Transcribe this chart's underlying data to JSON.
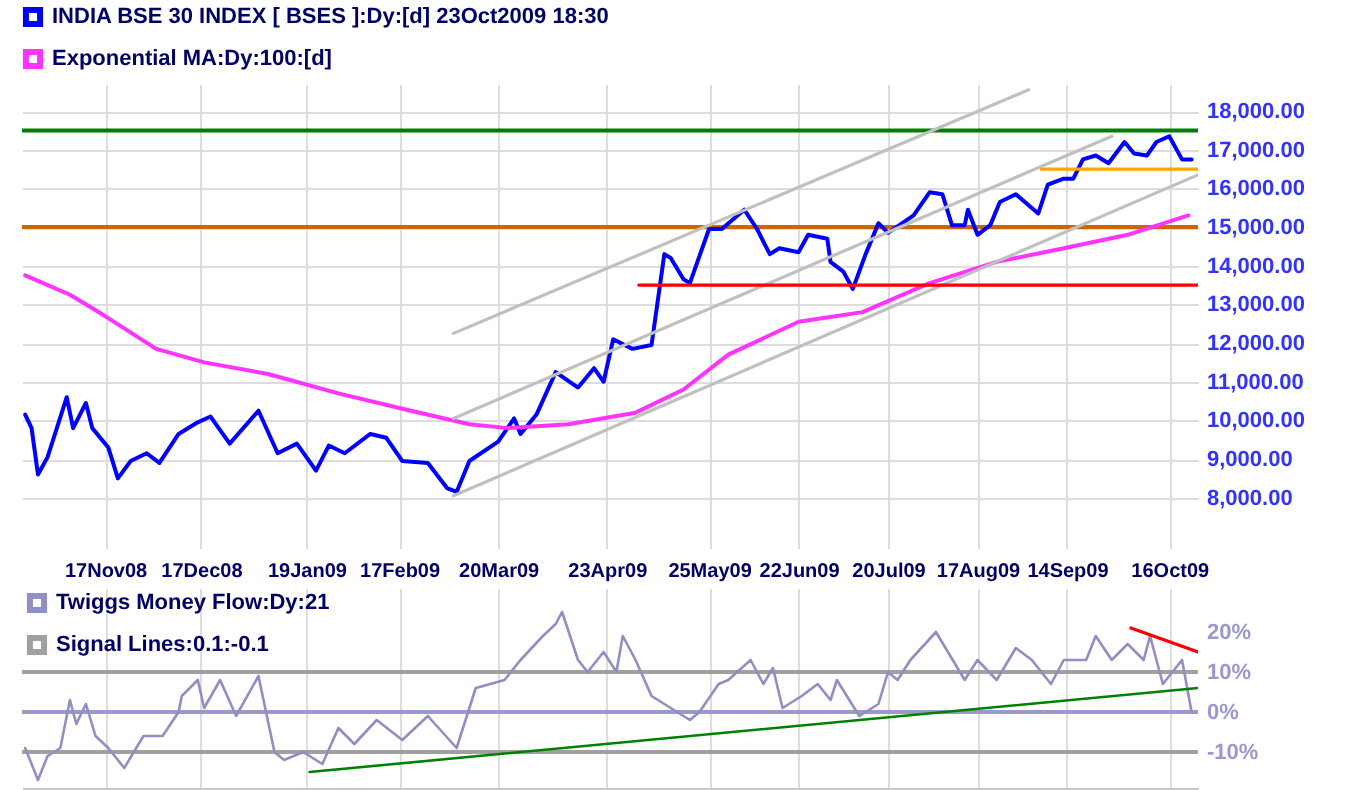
{
  "chart_data": [
    {
      "type": "line",
      "legend": "top left",
      "grid": true,
      "xlim": [
        "2008-10-22",
        "2009-10-25"
      ],
      "xticks": [
        {
          "value": "2008-11-17",
          "label": "17Nov08"
        },
        {
          "value": "2008-12-17",
          "label": "17Dec08"
        },
        {
          "value": "2009-01-19",
          "label": "19Jan09"
        },
        {
          "value": "2009-02-17",
          "label": "17Feb09"
        },
        {
          "value": "2009-03-20",
          "label": "20Mar09"
        },
        {
          "value": "2009-04-23",
          "label": "23Apr09"
        },
        {
          "value": "2009-05-25",
          "label": "25May09"
        },
        {
          "value": "2009-06-22",
          "label": "22Jun09"
        },
        {
          "value": "2009-07-20",
          "label": "20Jul09"
        },
        {
          "value": "2009-08-17",
          "label": "17Aug09"
        },
        {
          "value": "2009-09-14",
          "label": "14Sep09"
        },
        {
          "value": "2009-10-16",
          "label": "16Oct09"
        }
      ],
      "ylim": [
        6700,
        18700
      ],
      "yticks": [
        {
          "value": 8000,
          "label": "8,000.00"
        },
        {
          "value": 9000,
          "label": "9,000.00"
        },
        {
          "value": 10000,
          "label": "10,000.00"
        },
        {
          "value": 11000,
          "label": "11,000.00"
        },
        {
          "value": 12000,
          "label": "12,000.00"
        },
        {
          "value": 13000,
          "label": "13,000.00"
        },
        {
          "value": 14000,
          "label": "14,000.00"
        },
        {
          "value": 15000,
          "label": "15,000.00"
        },
        {
          "value": 16000,
          "label": "16,000.00"
        },
        {
          "value": 17000,
          "label": "17,000.00"
        },
        {
          "value": 18000,
          "label": "18,000.00"
        }
      ],
      "ref_lines": [
        {
          "axis": "y",
          "value": 17500,
          "label": null,
          "color": "#008000"
        },
        {
          "axis": "y",
          "value": 15000,
          "label": null,
          "color": "#cc6600"
        }
      ],
      "series": [
        {
          "name": "INDIA BSE 30 INDEX [ BSES ]:Dy:[d]  23Oct2009 18:30",
          "color": "#0000ff",
          "x": [
            "2008-10-23",
            "2008-10-25",
            "2008-10-27",
            "2008-10-30",
            "2008-11-05",
            "2008-11-07",
            "2008-11-11",
            "2008-11-13",
            "2008-11-18",
            "2008-11-21",
            "2008-11-25",
            "2008-11-30",
            "2008-12-04",
            "2008-12-10",
            "2008-12-16",
            "2008-12-20",
            "2008-12-26",
            "2009-01-04",
            "2009-01-10",
            "2009-01-16",
            "2009-01-22",
            "2009-01-26",
            "2009-01-31",
            "2009-02-08",
            "2009-02-13",
            "2009-02-18",
            "2009-02-26",
            "2009-03-04",
            "2009-03-07",
            "2009-03-11",
            "2009-03-20",
            "2009-03-25",
            "2009-03-27",
            "2009-04-01",
            "2009-04-07",
            "2009-04-14",
            "2009-04-19",
            "2009-04-22",
            "2009-04-25",
            "2009-05-01",
            "2009-05-07",
            "2009-05-11",
            "2009-05-13",
            "2009-05-17",
            "2009-05-19",
            "2009-05-25",
            "2009-05-29",
            "2009-06-05",
            "2009-06-09",
            "2009-06-13",
            "2009-06-16",
            "2009-06-22",
            "2009-06-25",
            "2009-07-01",
            "2009-07-02",
            "2009-07-06",
            "2009-07-09",
            "2009-07-13",
            "2009-07-17",
            "2009-07-20",
            "2009-07-28",
            "2009-08-02",
            "2009-08-06",
            "2009-08-09",
            "2009-08-13",
            "2009-08-14",
            "2009-08-17",
            "2009-08-21",
            "2009-08-24",
            "2009-08-29",
            "2009-09-05",
            "2009-09-08",
            "2009-09-13",
            "2009-09-16",
            "2009-09-19",
            "2009-09-23",
            "2009-09-27",
            "2009-10-02",
            "2009-10-05",
            "2009-10-09",
            "2009-10-12",
            "2009-10-16",
            "2009-10-20",
            "2009-10-23"
          ],
          "values": [
            10150,
            9800,
            8600,
            9050,
            10600,
            9800,
            10450,
            9800,
            9300,
            8500,
            8950,
            9150,
            8900,
            9650,
            9950,
            10100,
            9400,
            10250,
            9150,
            9400,
            8700,
            9350,
            9150,
            9650,
            9550,
            8950,
            8900,
            8250,
            8150,
            8950,
            9450,
            10050,
            9650,
            10150,
            11250,
            10850,
            11350,
            11000,
            12100,
            11850,
            11950,
            14300,
            14200,
            13650,
            13550,
            14950,
            14950,
            15450,
            14950,
            14300,
            14450,
            14350,
            14800,
            14700,
            14100,
            13850,
            13400,
            14300,
            15100,
            14850,
            15300,
            15900,
            15850,
            15050,
            15050,
            15450,
            14800,
            15050,
            15650,
            15850,
            15350,
            16100,
            16250,
            16250,
            16750,
            16850,
            16650,
            17200,
            16900,
            16850,
            17200,
            17350,
            16750,
            16750
          ]
        },
        {
          "name": "Exponential MA:Dy:100:[d]",
          "color": "#ff33ff",
          "x": [
            "2008-10-23",
            "2008-11-06",
            "2008-11-16",
            "2008-12-03",
            "2008-12-18",
            "2009-01-07",
            "2009-01-29",
            "2009-02-18",
            "2009-03-11",
            "2009-03-23",
            "2009-04-11",
            "2009-05-02",
            "2009-05-17",
            "2009-05-31",
            "2009-06-22",
            "2009-07-12",
            "2009-08-02",
            "2009-08-23",
            "2009-09-13",
            "2009-10-03",
            "2009-10-22"
          ],
          "values": [
            13750,
            13250,
            12750,
            11850,
            11500,
            11200,
            10700,
            10300,
            9900,
            9800,
            9900,
            10200,
            10800,
            11700,
            12550,
            12800,
            13550,
            14100,
            14450,
            14800,
            15300
          ]
        },
        {
          "color": "#c0c0c0",
          "x": [
            "2009-03-06",
            "2009-09-02"
          ],
          "values": [
            12250,
            18550
          ]
        },
        {
          "color": "#c0c0c0",
          "x": [
            "2009-03-06",
            "2009-09-28"
          ],
          "values": [
            10050,
            17350
          ]
        },
        {
          "color": "#c0c0c0",
          "x": [
            "2009-03-06",
            "2009-10-25"
          ],
          "values": [
            8050,
            16350
          ]
        },
        {
          "color": "#ff0000",
          "x": [
            "2009-05-03",
            "2009-10-25"
          ],
          "values": [
            13500,
            13500
          ]
        },
        {
          "color": "#ffa500",
          "x": [
            "2009-09-06",
            "2009-10-25"
          ],
          "values": [
            16500,
            16500
          ]
        }
      ]
    },
    {
      "type": "line",
      "legend": "top left",
      "grid": "x",
      "tick_labels": "y",
      "xlim": [
        "2008-10-22",
        "2009-10-25"
      ],
      "xticks": [
        {
          "value": "2008-11-17",
          "label": null
        },
        {
          "value": "2008-12-17",
          "label": null
        },
        {
          "value": "2009-01-19",
          "label": null
        },
        {
          "value": "2009-02-17",
          "label": null
        },
        {
          "value": "2009-03-20",
          "label": null
        },
        {
          "value": "2009-04-23",
          "label": null
        },
        {
          "value": "2009-05-25",
          "label": null
        },
        {
          "value": "2009-06-22",
          "label": null
        },
        {
          "value": "2009-07-20",
          "label": null
        },
        {
          "value": "2009-08-17",
          "label": null
        },
        {
          "value": "2009-09-14",
          "label": null
        },
        {
          "value": "2009-10-16",
          "label": null
        }
      ],
      "ylim": [
        -0.19,
        0.31
      ],
      "yticks": [
        {
          "value": -0.1,
          "label": "-10%"
        },
        {
          "value": 0,
          "label": "0%"
        },
        {
          "value": 0.1,
          "label": "10%"
        },
        {
          "value": 0.2,
          "label": "20%"
        }
      ],
      "ref_lines": [
        {
          "axis": "y",
          "value": 0.1,
          "label": "Signal Lines:0.1:-0.1",
          "color": "#a0a0a0"
        },
        {
          "axis": "y",
          "value": -0.1,
          "label": null,
          "color": "#a0a0a0"
        },
        {
          "axis": "y",
          "value": 0,
          "label": null,
          "color": "#9999cc"
        }
      ],
      "series": [
        {
          "name": "Twiggs Money Flow:Dy:21",
          "color": "#8f8fc2",
          "x": [
            "2008-10-23",
            "2008-10-27",
            "2008-10-30",
            "2008-11-03",
            "2008-11-06",
            "2008-11-08",
            "2008-11-11",
            "2008-11-14",
            "2008-11-18",
            "2008-11-23",
            "2008-11-29",
            "2008-12-05",
            "2008-12-10",
            "2008-12-11",
            "2008-12-16",
            "2008-12-18",
            "2008-12-23",
            "2008-12-28",
            "2009-01-04",
            "2009-01-09",
            "2009-01-12",
            "2009-01-18",
            "2009-01-24",
            "2009-01-29",
            "2009-02-03",
            "2009-02-10",
            "2009-02-18",
            "2009-02-26",
            "2009-03-07",
            "2009-03-13",
            "2009-03-22",
            "2009-03-27",
            "2009-04-03",
            "2009-04-07",
            "2009-04-09",
            "2009-04-14",
            "2009-04-17",
            "2009-04-22",
            "2009-04-26",
            "2009-04-28",
            "2009-05-02",
            "2009-05-07",
            "2009-05-11",
            "2009-05-19",
            "2009-05-22",
            "2009-05-28",
            "2009-05-31",
            "2009-06-07",
            "2009-06-11",
            "2009-06-14",
            "2009-06-17",
            "2009-06-23",
            "2009-06-28",
            "2009-07-02",
            "2009-07-04",
            "2009-07-11",
            "2009-07-17",
            "2009-07-20",
            "2009-07-23",
            "2009-07-27",
            "2009-08-04",
            "2009-08-10",
            "2009-08-13",
            "2009-08-17",
            "2009-08-23",
            "2009-08-29",
            "2009-09-03",
            "2009-09-09",
            "2009-09-13",
            "2009-09-20",
            "2009-09-23",
            "2009-09-28",
            "2009-10-03",
            "2009-10-08",
            "2009-10-10",
            "2009-10-14",
            "2009-10-20",
            "2009-10-23"
          ],
          "values": [
            -0.09,
            -0.17,
            -0.11,
            -0.09,
            0.03,
            -0.03,
            0.02,
            -0.06,
            -0.09,
            -0.14,
            -0.06,
            -0.06,
            0,
            0.04,
            0.08,
            0.01,
            0.08,
            -0.01,
            0.09,
            -0.1,
            -0.12,
            -0.1,
            -0.13,
            -0.04,
            -0.08,
            -0.02,
            -0.07,
            -0.01,
            -0.09,
            0.06,
            0.08,
            0.13,
            0.19,
            0.22,
            0.25,
            0.13,
            0.1,
            0.15,
            0.1,
            0.19,
            0.13,
            0.04,
            0.02,
            -0.02,
            0,
            0.07,
            0.08,
            0.13,
            0.07,
            0.11,
            0.01,
            0.04,
            0.07,
            0.03,
            0.08,
            -0.01,
            0.02,
            0.1,
            0.08,
            0.13,
            0.2,
            0.12,
            0.08,
            0.13,
            0.08,
            0.16,
            0.13,
            0.07,
            0.13,
            0.13,
            0.19,
            0.13,
            0.17,
            0.13,
            0.19,
            0.07,
            0.13,
            0
          ]
        },
        {
          "color": "#008000",
          "x": [
            "2009-01-20",
            "2009-10-25"
          ],
          "values": [
            -0.15,
            0.06
          ]
        },
        {
          "color": "#ff0000",
          "x": [
            "2009-10-04",
            "2009-10-25"
          ],
          "values": [
            0.21,
            0.15
          ]
        }
      ]
    }
  ]
}
